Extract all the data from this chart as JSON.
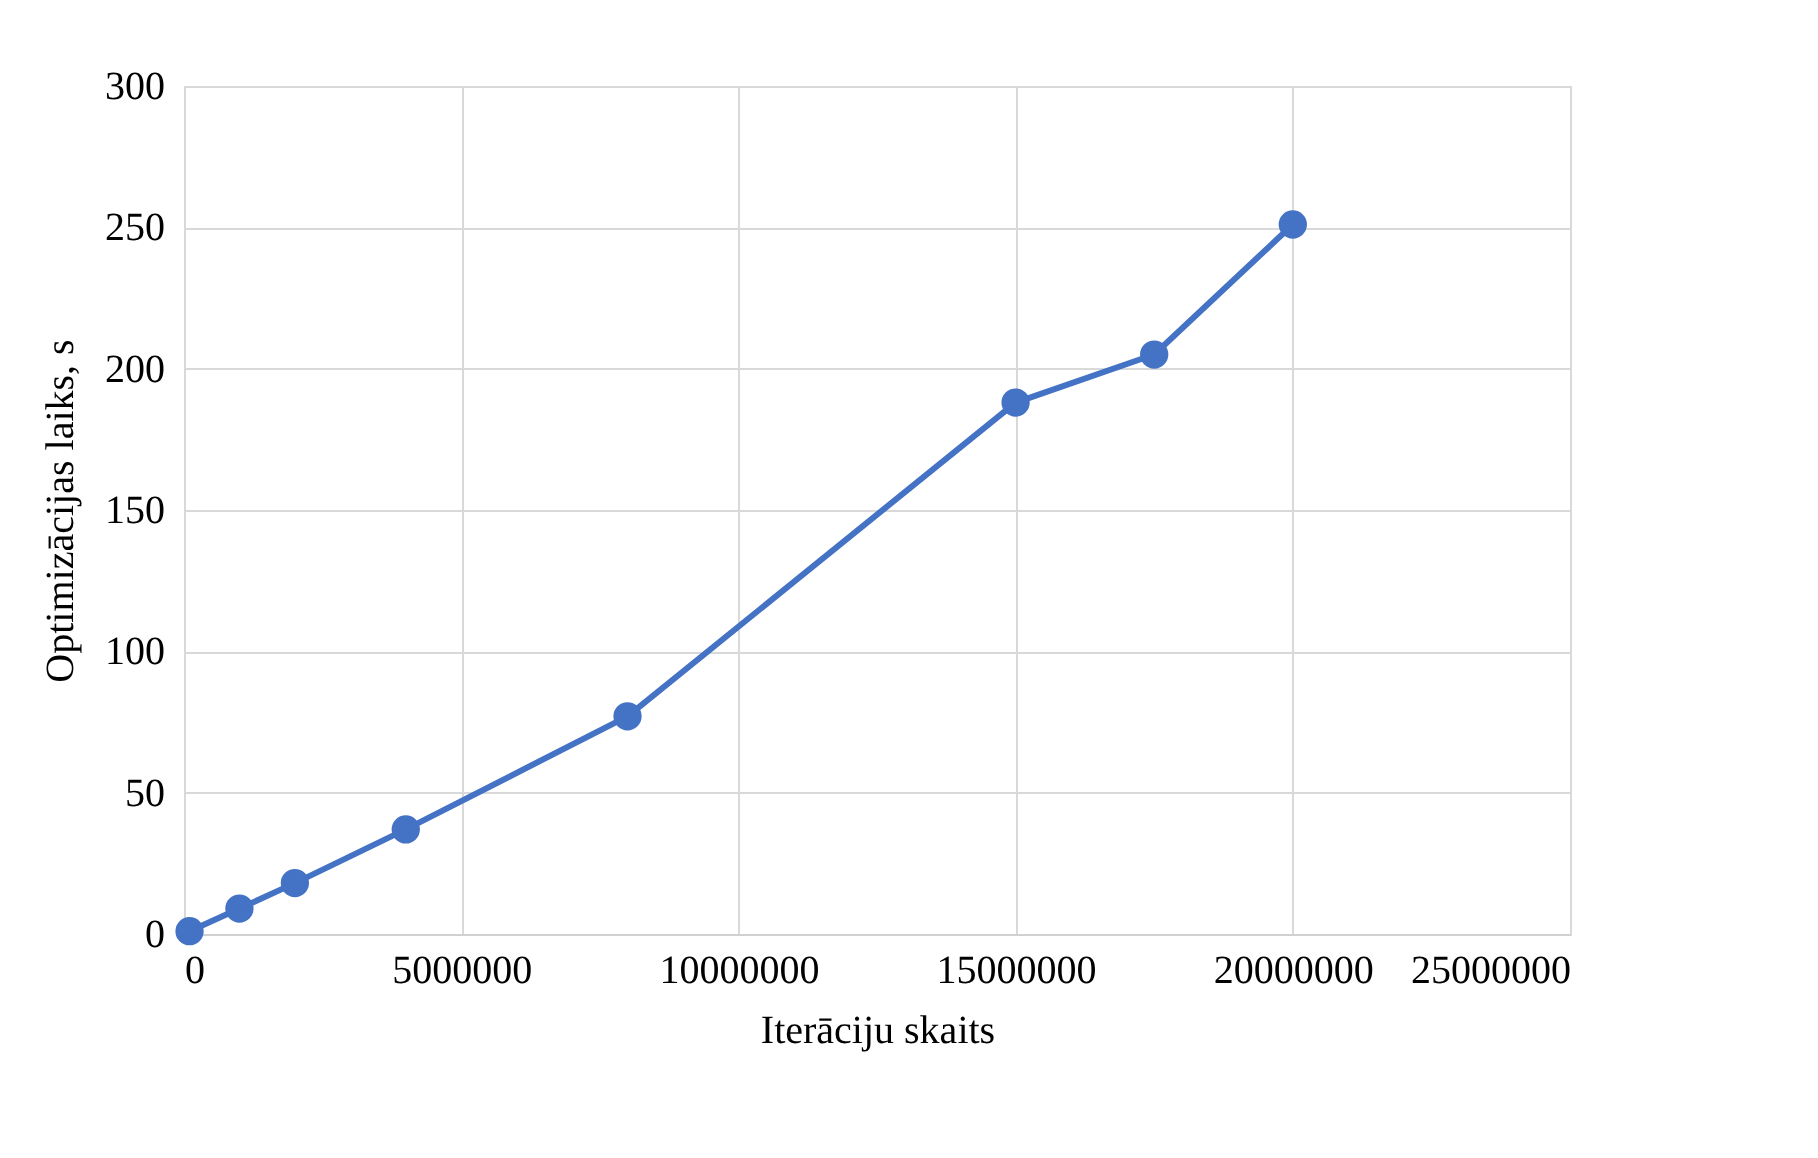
{
  "chart_data": {
    "type": "line",
    "xlabel": "Iterāciju skaits",
    "ylabel": "Optimizācijas laiks, s",
    "x": [
      100000,
      1000000,
      2000000,
      4000000,
      8000000,
      15000000,
      17500000,
      20000000
    ],
    "series": [
      {
        "color": "#4472c4",
        "values": [
          1,
          9,
          18,
          37,
          77,
          188,
          205,
          251
        ]
      }
    ],
    "xlim": [
      0,
      25000000
    ],
    "xticks": [
      0,
      5000000,
      10000000,
      15000000,
      20000000,
      25000000
    ],
    "ylim": [
      0,
      300
    ],
    "yticks": [
      0,
      50,
      100,
      150,
      200,
      250,
      300
    ],
    "grid": true,
    "marker": "circle",
    "line_style": "solid"
  }
}
